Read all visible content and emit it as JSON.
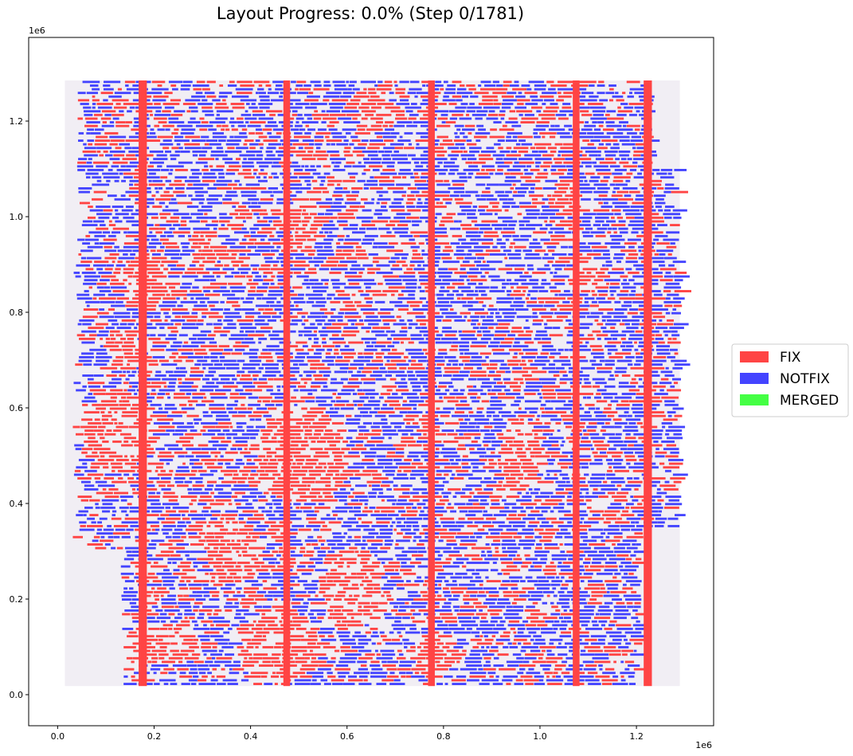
{
  "chart_data": {
    "type": "heatmap",
    "title": "Layout Progress: 0.0% (Step 0/1781)",
    "xlabel": "",
    "ylabel": "",
    "x_offset_label": "1e6",
    "y_offset_label": "1e6",
    "xlim": [
      -0.06,
      1.36
    ],
    "ylim": [
      -0.065,
      1.375
    ],
    "x_ticks": [
      0.0,
      0.2,
      0.4,
      0.6,
      0.8,
      1.0,
      1.2
    ],
    "x_tick_labels": [
      "0.0",
      "0.2",
      "0.4",
      "0.6",
      "0.8",
      "1.0",
      "1.2"
    ],
    "y_ticks": [
      0.0,
      0.2,
      0.4,
      0.6,
      0.8,
      1.0,
      1.2
    ],
    "y_tick_labels": [
      "0.0",
      "0.2",
      "0.4",
      "0.6",
      "0.8",
      "1.0",
      "1.2"
    ],
    "grid": false,
    "legend_placement": "right, outside plot",
    "series": [
      {
        "name": "FIX",
        "color": "#ff4444"
      },
      {
        "name": "NOTFIX",
        "color": "#4444ff"
      },
      {
        "name": "MERGED",
        "color": "#44ff44"
      }
    ],
    "fix_columns": [
      {
        "x_range": [
          0.168,
          0.185
        ],
        "y_range": [
          0.018,
          1.285
        ]
      },
      {
        "x_range": [
          0.468,
          0.482
        ],
        "y_range": [
          0.018,
          1.285
        ]
      },
      {
        "x_range": [
          0.768,
          0.782
        ],
        "y_range": [
          0.018,
          1.285
        ]
      },
      {
        "x_range": [
          1.068,
          1.082
        ],
        "y_range": [
          0.018,
          1.285
        ]
      },
      {
        "x_range": [
          1.215,
          1.232
        ],
        "y_range": [
          0.018,
          1.285
        ]
      }
    ],
    "fix_clusters": [
      {
        "cx": 0.11,
        "cy": 0.55,
        "rx": 0.08,
        "ry": 0.09
      },
      {
        "cx": 0.2,
        "cy": 0.1,
        "rx": 0.1,
        "ry": 0.04
      },
      {
        "cx": 0.17,
        "cy": 0.86,
        "rx": 0.06,
        "ry": 0.06
      },
      {
        "cx": 0.5,
        "cy": 0.5,
        "rx": 0.1,
        "ry": 0.1
      },
      {
        "cx": 0.5,
        "cy": 0.98,
        "rx": 0.04,
        "ry": 0.06
      },
      {
        "cx": 0.64,
        "cy": 1.22,
        "rx": 0.05,
        "ry": 0.05
      },
      {
        "cx": 0.6,
        "cy": 0.22,
        "rx": 0.07,
        "ry": 0.09
      },
      {
        "cx": 0.45,
        "cy": 0.1,
        "rx": 0.09,
        "ry": 0.08
      },
      {
        "cx": 0.77,
        "cy": 0.08,
        "rx": 0.05,
        "ry": 0.05
      },
      {
        "cx": 1.04,
        "cy": 1.03,
        "rx": 0.03,
        "ry": 0.04
      },
      {
        "cx": 1.09,
        "cy": 0.87,
        "rx": 0.04,
        "ry": 0.03
      },
      {
        "cx": 0.95,
        "cy": 0.5,
        "rx": 0.05,
        "ry": 0.08
      },
      {
        "cx": 0.3,
        "cy": 0.93,
        "rx": 0.04,
        "ry": 0.04
      },
      {
        "cx": 0.13,
        "cy": 0.72,
        "rx": 0.04,
        "ry": 0.04
      },
      {
        "cx": 0.35,
        "cy": 0.3,
        "rx": 0.07,
        "ry": 0.07
      }
    ]
  }
}
